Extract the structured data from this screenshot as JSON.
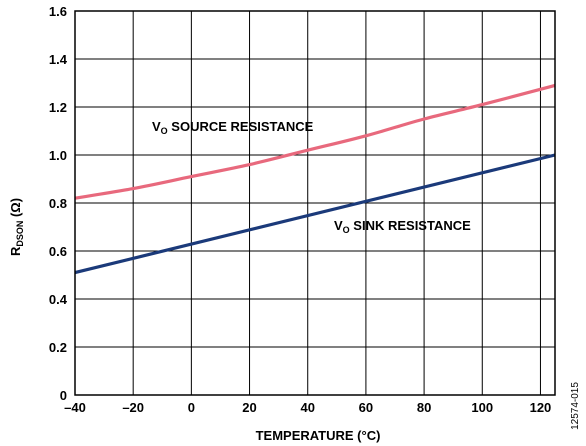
{
  "chart_data": {
    "type": "line",
    "xlabel": "TEMPERATURE (°C)",
    "ylabel": {
      "main": "R",
      "sub": "DSON",
      "unit": " (Ω)"
    },
    "xlim": [
      -40,
      125
    ],
    "ylim": [
      0,
      1.6
    ],
    "x_ticks": [
      "–40",
      "–20",
      "0",
      "20",
      "40",
      "60",
      "80",
      "100",
      "120"
    ],
    "x_tick_values": [
      -40,
      -20,
      0,
      20,
      40,
      60,
      80,
      100,
      120
    ],
    "y_ticks": [
      "0",
      "0.2",
      "0.4",
      "0.6",
      "0.8",
      "1.0",
      "1.2",
      "1.4",
      "1.6"
    ],
    "y_tick_values": [
      0,
      0.2,
      0.4,
      0.6,
      0.8,
      1.0,
      1.2,
      1.4,
      1.6
    ],
    "grid": true,
    "series": [
      {
        "name": "VO SOURCE RESISTANCE",
        "color": "#e8697d",
        "x": [
          -40,
          -20,
          0,
          20,
          40,
          60,
          80,
          100,
          125
        ],
        "y": [
          0.82,
          0.86,
          0.91,
          0.96,
          1.02,
          1.08,
          1.15,
          1.21,
          1.29
        ]
      },
      {
        "name": "VO SINK RESISTANCE",
        "color": "#1b3a7a",
        "x": [
          -40,
          125
        ],
        "y": [
          0.51,
          1.0
        ]
      }
    ],
    "annotations": [
      {
        "main": "V",
        "sub": "O",
        "rest": " SOURCE RESISTANCE",
        "series": 0
      },
      {
        "main": "V",
        "sub": "O",
        "rest": " SINK RESISTANCE",
        "series": 1
      }
    ]
  },
  "figure_id": "12574-015"
}
